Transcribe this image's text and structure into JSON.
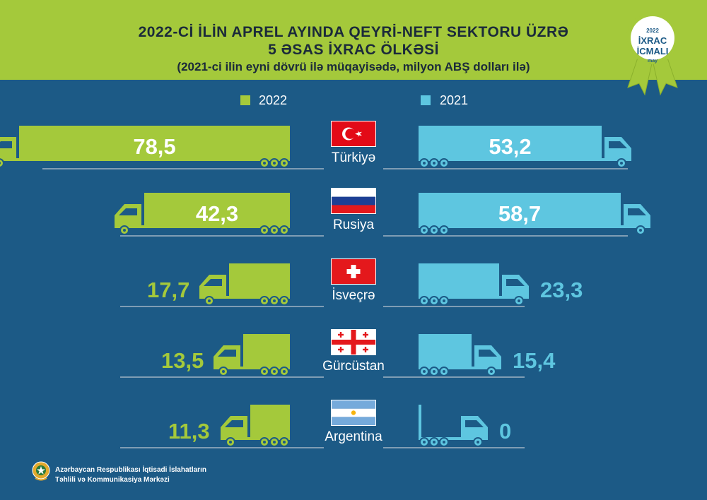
{
  "header": {
    "title_line1": "2022-Cİ İLİN APREL AYINDA QEYRİ-NEFT SEKTORU ÜZRƏ",
    "title_line2": "5 ƏSAS İXRAC ÖLKƏSİ",
    "subtitle": "(2021-ci ilin eyni dövrü ilə müqayisədə, milyon ABŞ dolları ilə)"
  },
  "badge": {
    "year": "2022",
    "line1": "İXRAC",
    "line2": "İCMALI",
    "month": "may"
  },
  "colors": {
    "series_2022": "#a4c93b",
    "series_2021": "#5ec6e0",
    "background": "#1c5a86"
  },
  "chart_data": {
    "type": "bar",
    "categories": [
      "Türkiyə",
      "Rusiya",
      "İsveçrə",
      "Gürcüstan",
      "Argentina"
    ],
    "series": [
      {
        "name": "2022",
        "values": [
          78.5,
          42.3,
          17.7,
          13.5,
          11.3
        ],
        "labels": [
          "78,5",
          "42,3",
          "17,7",
          "13,5",
          "11,3"
        ]
      },
      {
        "name": "2021",
        "values": [
          53.2,
          58.7,
          23.3,
          15.4,
          0
        ],
        "labels": [
          "53,2",
          "58,7",
          "23,3",
          "15,4",
          "0"
        ]
      }
    ],
    "flags": [
      "turkey",
      "russia",
      "switzerland",
      "georgia",
      "argentina"
    ]
  },
  "footer": {
    "line1": "Azərbaycan Respublikası İqtisadi İslahatların",
    "line2": "Təhlili və Kommunikasiya Mərkəzi"
  }
}
